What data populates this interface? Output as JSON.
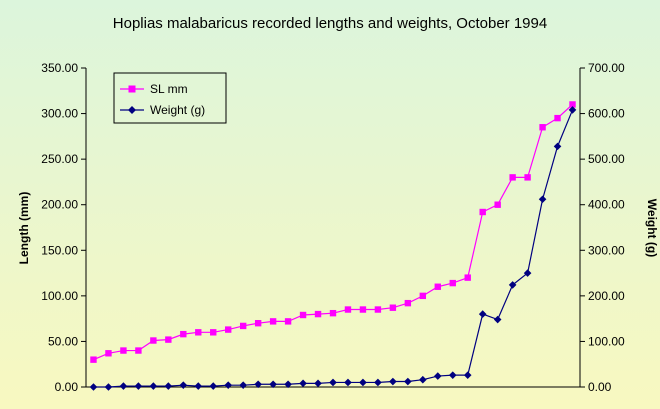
{
  "chart_data": {
    "type": "line",
    "title": "Hoplias malabaricus recorded lengths and weights, October 1994",
    "xlabel": "",
    "ylabel": "Length (mm)",
    "y2label": "Weight (g)",
    "ylim": [
      0,
      350
    ],
    "y2lim": [
      0,
      700
    ],
    "yticks": [
      "0.00",
      "50.00",
      "100.00",
      "150.00",
      "200.00",
      "250.00",
      "300.00",
      "350.00"
    ],
    "y2ticks": [
      "0.00",
      "100.00",
      "200.00",
      "300.00",
      "400.00",
      "500.00",
      "600.00",
      "700.00"
    ],
    "grid": false,
    "legend_position": "top-left",
    "series": [
      {
        "name": "SL mm",
        "axis": "left",
        "color": "#ff00ff",
        "marker": "square",
        "values": [
          30,
          37,
          40,
          40,
          51,
          52,
          58,
          60,
          60,
          63,
          67,
          70,
          72,
          72,
          79,
          80,
          81,
          85,
          85,
          85,
          87,
          92,
          100,
          110,
          114,
          120,
          192,
          200,
          230,
          230,
          285,
          295,
          310
        ]
      },
      {
        "name": "Weight (g)",
        "axis": "right",
        "color": "#000080",
        "marker": "diamond",
        "values": [
          0,
          0,
          2,
          2,
          2,
          2,
          4,
          2,
          2,
          4,
          4,
          6,
          6,
          6,
          8,
          8,
          10,
          10,
          10,
          10,
          12,
          12,
          16,
          24,
          26,
          26,
          160,
          148,
          224,
          250,
          412,
          528,
          608
        ]
      }
    ]
  }
}
